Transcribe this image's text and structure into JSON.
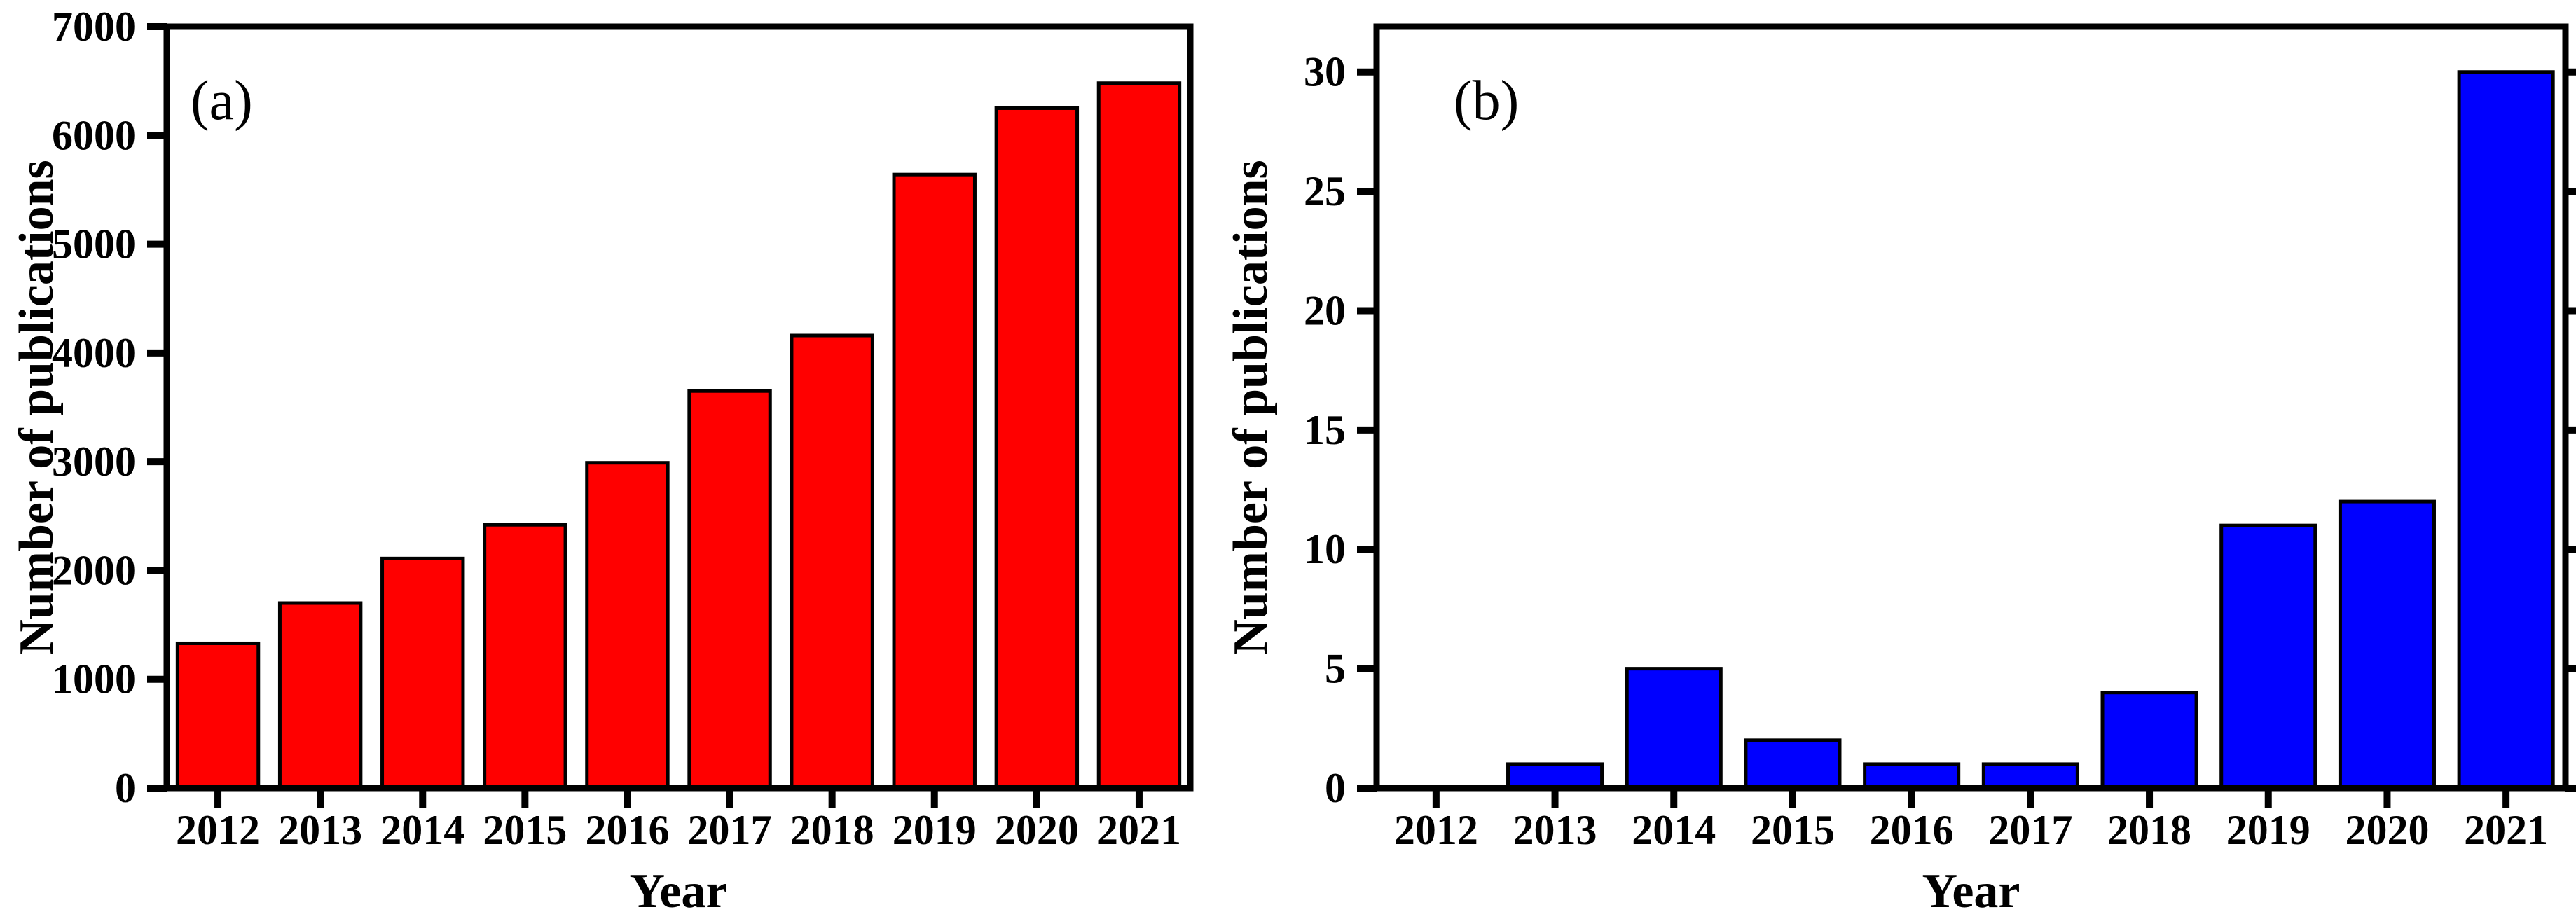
{
  "figure": {
    "background": "#ffffff",
    "frame_color": "#000000"
  },
  "chart_data": [
    {
      "type": "bar",
      "panel_label": "(a)",
      "title": "",
      "xlabel": "Year",
      "ylabel": "Number of publications",
      "categories": [
        "2012",
        "2013",
        "2014",
        "2015",
        "2016",
        "2017",
        "2018",
        "2019",
        "2020",
        "2021"
      ],
      "values": [
        1330,
        1700,
        2110,
        2420,
        2990,
        3650,
        4160,
        5640,
        6250,
        6480
      ],
      "bar_fill": "#ff0000",
      "bar_stroke": "#000000",
      "ylim": [
        0,
        7000
      ],
      "yticks": [
        0,
        1000,
        2000,
        3000,
        4000,
        5000,
        6000,
        7000
      ],
      "ytick_labels": [
        "0",
        "1000",
        "2000",
        "3000",
        "4000",
        "5000",
        "6000",
        "7000"
      ],
      "grid": false,
      "legend": null,
      "right_axis_ticks": false
    },
    {
      "type": "bar",
      "panel_label": "(b)",
      "title": "",
      "xlabel": "Year",
      "ylabel": "Number of publications",
      "categories": [
        "2012",
        "2013",
        "2014",
        "2015",
        "2016",
        "2017",
        "2018",
        "2019",
        "2020",
        "2021"
      ],
      "values": [
        0,
        1,
        5,
        2,
        1,
        1,
        4,
        11,
        12,
        30
      ],
      "bar_fill": "#0000ff",
      "bar_stroke": "#000000",
      "ylim": [
        0,
        31.9
      ],
      "yticks": [
        0,
        5,
        10,
        15,
        20,
        25,
        30
      ],
      "ytick_labels": [
        "0",
        "5",
        "10",
        "15",
        "20",
        "25",
        "30"
      ],
      "grid": false,
      "legend": null,
      "right_axis_ticks": true
    }
  ]
}
